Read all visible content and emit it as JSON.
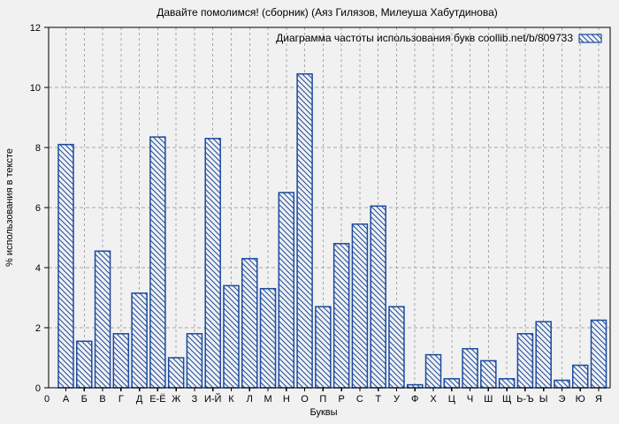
{
  "page": {
    "background_color": "#f1f1f1"
  },
  "chart_data": {
    "type": "bar",
    "title": "Давайте помолимся! (сборник) (Аяз Гилязов, Милеуша Хабутдинова)",
    "legend": "Диаграмма частоты использования букв coollib.net/b/809733",
    "legend_position": "top-right-inside",
    "xlabel": "Буквы",
    "ylabel": "% использования в тексте",
    "origin_tick_label": "0",
    "ylim": [
      0,
      12
    ],
    "yticks": [
      0,
      2,
      4,
      6,
      8,
      10,
      12
    ],
    "grid": true,
    "bar_style": "diagonal-hatch",
    "colors": {
      "bar_outline": "#1a4a9e",
      "bar_fill_background": "#f1f1f1",
      "gridline": "#a8a8a8",
      "axis": "#000000",
      "text": "#000000"
    },
    "categories": [
      "А",
      "Б",
      "В",
      "Г",
      "Д",
      "Е-Ё",
      "Ж",
      "З",
      "И-Й",
      "К",
      "Л",
      "М",
      "Н",
      "О",
      "П",
      "Р",
      "С",
      "Т",
      "У",
      "Ф",
      "Х",
      "Ц",
      "Ч",
      "Ш",
      "Щ",
      "Ь-Ъ",
      "Ы",
      "Э",
      "Ю",
      "Я"
    ],
    "values": [
      8.1,
      1.55,
      4.55,
      1.8,
      3.15,
      8.35,
      1.0,
      1.8,
      8.3,
      3.4,
      4.3,
      3.3,
      6.5,
      10.45,
      2.7,
      4.8,
      5.45,
      6.05,
      2.7,
      0.1,
      1.1,
      0.3,
      1.3,
      0.9,
      0.3,
      1.8,
      2.2,
      0.25,
      0.75,
      2.25
    ]
  }
}
